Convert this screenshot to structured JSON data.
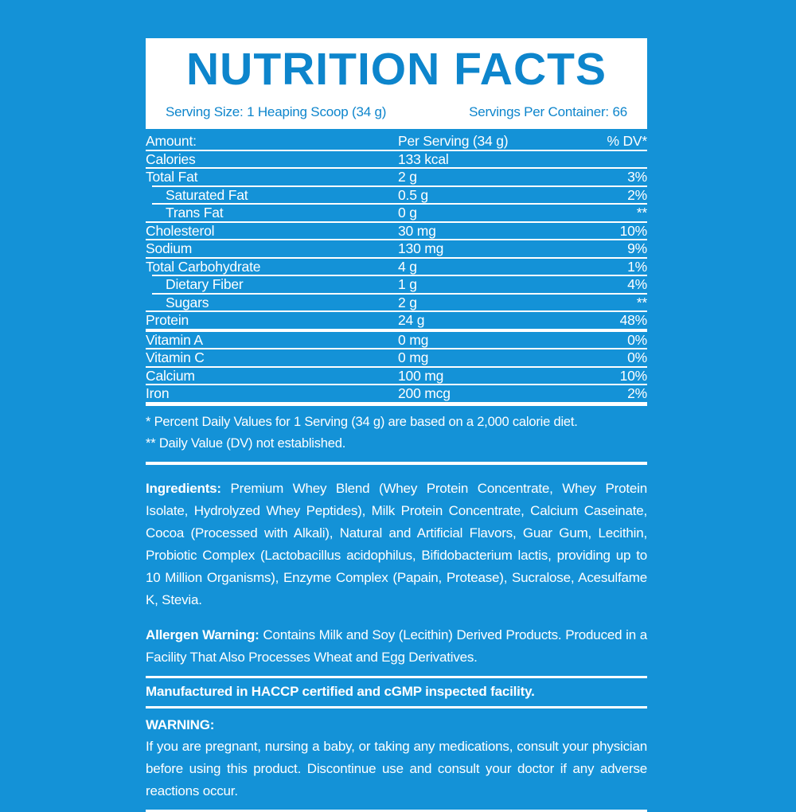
{
  "colors": {
    "background": "#1492d7",
    "accent_blue": "#0d85cc",
    "text": "#ffffff"
  },
  "header": {
    "title": "NUTRITION FACTS",
    "serving_size": "Serving Size: 1 Heaping Scoop (34 g)",
    "servings_per_container": "Servings Per Container: 66"
  },
  "table": {
    "columns": [
      "Amount:",
      "Per Serving (34 g)",
      "% DV*"
    ],
    "rows": [
      {
        "name": "Calories",
        "amount": "133 kcal",
        "dv": ""
      },
      {
        "name": "Total Fat",
        "amount": "2 g",
        "dv": "3%"
      },
      {
        "name": "Saturated Fat",
        "amount": "0.5 g",
        "dv": "2%"
      },
      {
        "name": "Trans Fat",
        "amount": "0 g",
        "dv": "**"
      },
      {
        "name": "Cholesterol",
        "amount": "30 mg",
        "dv": "10%"
      },
      {
        "name": "Sodium",
        "amount": "130 mg",
        "dv": "9%"
      },
      {
        "name": "Total Carbohydrate",
        "amount": "4 g",
        "dv": "1%"
      },
      {
        "name": "Dietary Fiber",
        "amount": "1 g",
        "dv": "4%"
      },
      {
        "name": "Sugars",
        "amount": "2 g",
        "dv": "**"
      },
      {
        "name": "Protein",
        "amount": "24 g",
        "dv": "48%"
      },
      {
        "name": "Vitamin A",
        "amount": "0 mg",
        "dv": "0%"
      },
      {
        "name": "Vitamin C",
        "amount": "0 mg",
        "dv": "0%"
      },
      {
        "name": "Calcium",
        "amount": "100 mg",
        "dv": "10%"
      },
      {
        "name": "Iron",
        "amount": "200 mcg",
        "dv": "2%"
      }
    ]
  },
  "footnotes": [
    "* Percent Daily Values for 1 Serving (34 g) are based on a 2,000 calorie diet.",
    "** Daily Value (DV) not established."
  ],
  "ingredients": {
    "label": "Ingredients:",
    "text": " Premium Whey Blend (Whey Protein Concentrate, Whey Protein Isolate, Hydrolyzed Whey Peptides), Milk Protein Concentrate, Calcium Caseinate, Cocoa (Processed with Alkali), Natural and Artificial Flavors, Guar Gum, Lecithin, Probiotic Complex (Lactobacillus acidophilus, Bifidobacterium lactis, providing up to 10 Million Organisms), Enzyme Complex (Papain, Protease), Sucralose, Acesulfame K, Stevia."
  },
  "allergen": {
    "label": "Allergen Warning:",
    "text": " Contains Milk and Soy (Lecithin) Derived Products. Produced in a Facility That Also Processes Wheat and Egg Derivatives."
  },
  "manufactured": "Manufactured in HACCP certified and cGMP inspected facility.",
  "warning": {
    "label": "WARNING:",
    "text": "If you are pregnant, nursing a baby, or taking any medications, consult your physician before using this product. Discontinue use and consult your doctor if any adverse reactions occur."
  }
}
